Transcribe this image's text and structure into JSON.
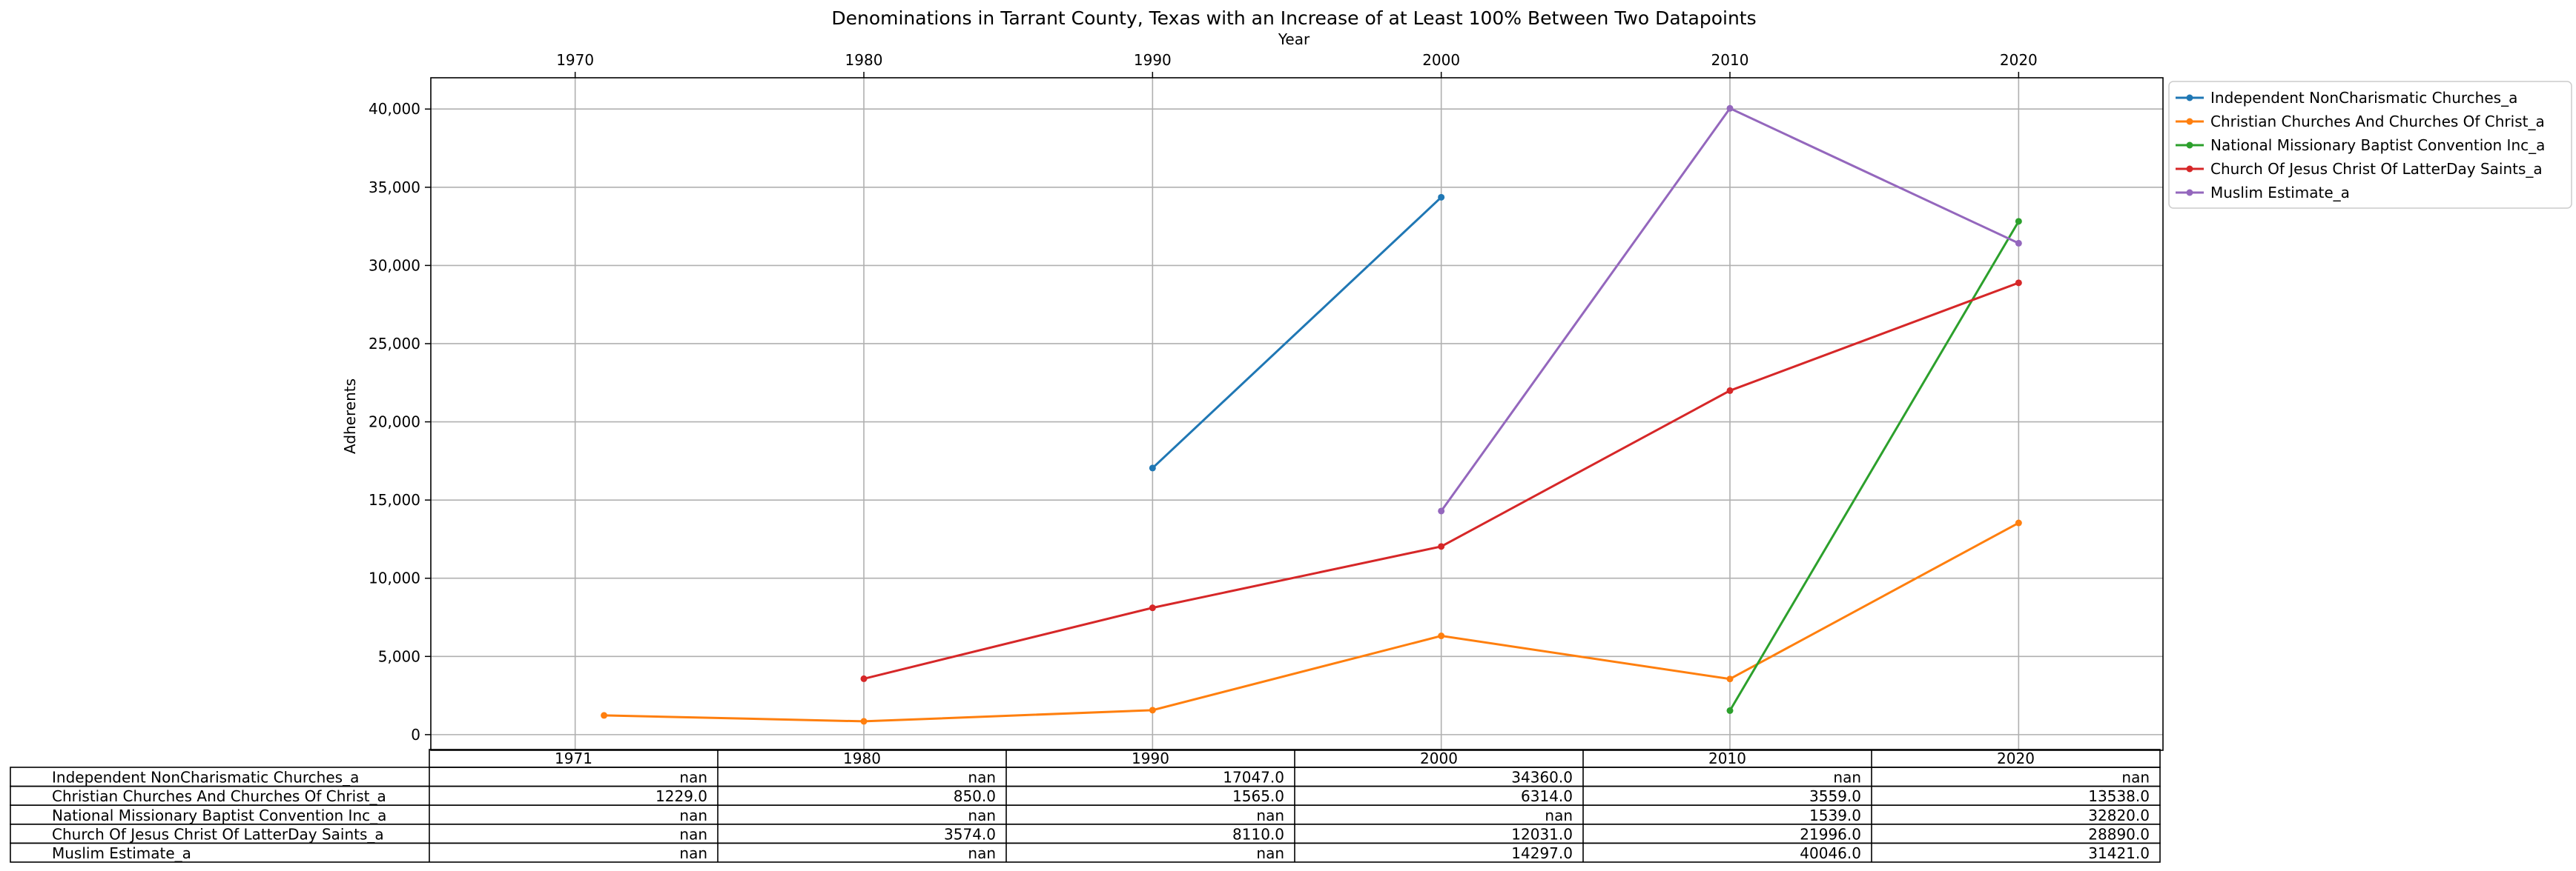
{
  "chart_data": {
    "type": "line",
    "title": "Denominations in Tarrant County, Texas with an Increase of at Least 100% Between Two Datapoints",
    "xlabel": "Year",
    "ylabel": "Adherents",
    "xlim": [
      1965,
      2025
    ],
    "ylim": [
      -1000,
      42000
    ],
    "xticks": [
      1970,
      1980,
      1990,
      2000,
      2010,
      2020
    ],
    "xtick_labels": [
      "1970",
      "1980",
      "1990",
      "2000",
      "2010",
      "2020"
    ],
    "yticks": [
      0,
      5000,
      10000,
      15000,
      20000,
      25000,
      30000,
      35000,
      40000
    ],
    "ytick_labels": [
      "0",
      "5,000",
      "10,000",
      "15,000",
      "20,000",
      "25,000",
      "30,000",
      "35,000",
      "40,000"
    ],
    "x_axis_position": "top",
    "grid": true,
    "legend_position": "outside-top-right",
    "x": [
      1971,
      1980,
      1990,
      2000,
      2010,
      2020
    ],
    "series": [
      {
        "name": "Independent NonCharismatic Churches_a",
        "color": "#1f77b4",
        "values": [
          null,
          null,
          17047.0,
          34360.0,
          null,
          null
        ]
      },
      {
        "name": "Christian Churches And Churches Of Christ_a",
        "color": "#ff7f0e",
        "values": [
          1229.0,
          850.0,
          1565.0,
          6314.0,
          3559.0,
          13538.0
        ]
      },
      {
        "name": "National Missionary Baptist Convention Inc_a",
        "color": "#2ca02c",
        "values": [
          null,
          null,
          null,
          null,
          1539.0,
          32820.0
        ]
      },
      {
        "name": "Church Of Jesus Christ Of LatterDay Saints_a",
        "color": "#d62728",
        "values": [
          null,
          3574.0,
          8110.0,
          12031.0,
          21996.0,
          28890.0
        ]
      },
      {
        "name": "Muslim Estimate_a",
        "color": "#9467bd",
        "values": [
          null,
          null,
          null,
          14297.0,
          40046.0,
          31421.0
        ]
      }
    ],
    "table": {
      "columns": [
        "1971",
        "1980",
        "1990",
        "2000",
        "2010",
        "2020"
      ],
      "rows": [
        {
          "label": "Independent NonCharismatic Churches_a",
          "cells": [
            "nan",
            "nan",
            "17047.0",
            "34360.0",
            "nan",
            "nan"
          ]
        },
        {
          "label": "Christian Churches And Churches Of Christ_a",
          "cells": [
            "1229.0",
            "850.0",
            "1565.0",
            "6314.0",
            "3559.0",
            "13538.0"
          ]
        },
        {
          "label": "National Missionary Baptist Convention Inc_a",
          "cells": [
            "nan",
            "nan",
            "nan",
            "nan",
            "1539.0",
            "32820.0"
          ]
        },
        {
          "label": "Church Of Jesus Christ Of LatterDay Saints_a",
          "cells": [
            "nan",
            "3574.0",
            "8110.0",
            "12031.0",
            "21996.0",
            "28890.0"
          ]
        },
        {
          "label": "Muslim Estimate_a",
          "cells": [
            "nan",
            "nan",
            "nan",
            "14297.0",
            "40046.0",
            "31421.0"
          ]
        }
      ]
    }
  }
}
